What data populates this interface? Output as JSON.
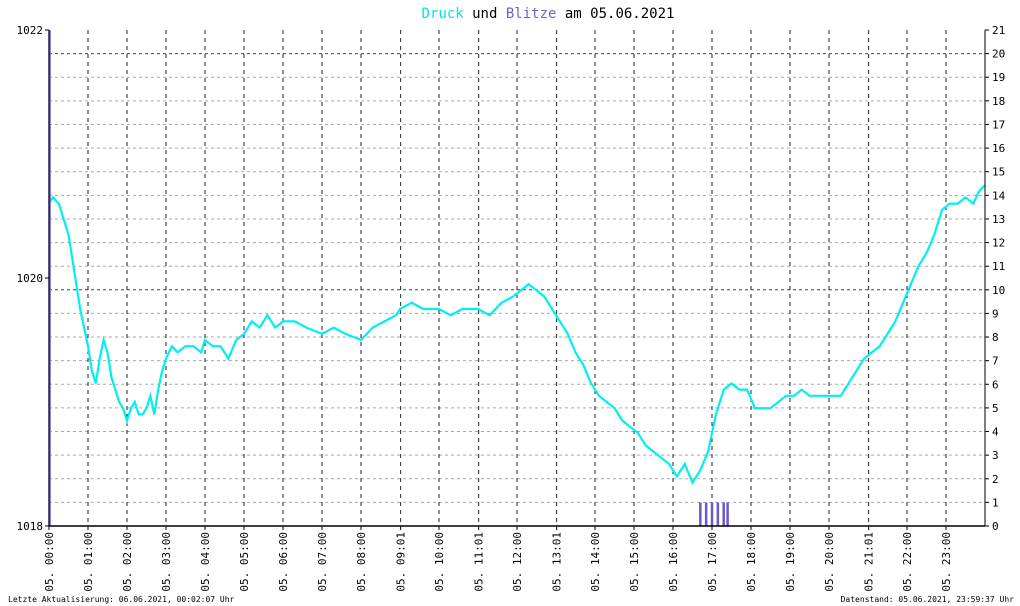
{
  "chart_data": {
    "type": "line",
    "title_parts": [
      "Druck",
      " und ",
      "Blitze",
      " am 05.06.2021"
    ],
    "title_colors": [
      "#00e5e5",
      "#000000",
      "#7060d0",
      "#000000"
    ],
    "left_axis": {
      "ylim": [
        1018,
        1022
      ],
      "ticks": [
        "1018",
        "1020",
        "1022"
      ]
    },
    "right_axis": {
      "ylim": [
        0,
        21
      ],
      "ticks": [
        "0",
        "1",
        "2",
        "3",
        "4",
        "5",
        "6",
        "7",
        "8",
        "9",
        "10",
        "11",
        "12",
        "13",
        "14",
        "15",
        "16",
        "17",
        "18",
        "19",
        "20",
        "21"
      ]
    },
    "x_ticks": [
      "05. 00:00",
      "05. 01:00",
      "05. 02:00",
      "05. 03:00",
      "05. 04:00",
      "05. 05:00",
      "05. 06:00",
      "05. 07:00",
      "05. 08:00",
      "05. 09:01",
      "05. 10:00",
      "05. 11:01",
      "05. 12:00",
      "05. 13:01",
      "05. 14:00",
      "05. 15:00",
      "05. 16:00",
      "05. 17:00",
      "05. 18:00",
      "05. 19:00",
      "05. 20:00",
      "05. 21:01",
      "05. 22:00",
      "05. 23:00"
    ],
    "x_tick_hours": [
      0,
      1,
      2,
      3,
      4,
      5,
      6,
      7,
      8,
      9.017,
      10,
      11.017,
      12,
      13.017,
      14,
      15,
      16,
      17,
      18,
      19,
      20,
      21.017,
      22,
      23
    ],
    "x_range_hours": [
      0,
      24
    ],
    "grid": true,
    "series": [
      {
        "name": "Druck",
        "axis": "left",
        "color": "#00f0f0",
        "points": [
          [
            0.0,
            1020.6
          ],
          [
            0.1,
            1020.65
          ],
          [
            0.25,
            1020.6
          ],
          [
            0.4,
            1020.45
          ],
          [
            0.5,
            1020.35
          ],
          [
            0.6,
            1020.15
          ],
          [
            0.7,
            1019.95
          ],
          [
            0.8,
            1019.75
          ],
          [
            0.9,
            1019.6
          ],
          [
            1.0,
            1019.45
          ],
          [
            1.1,
            1019.25
          ],
          [
            1.2,
            1019.15
          ],
          [
            1.3,
            1019.35
          ],
          [
            1.4,
            1019.5
          ],
          [
            1.5,
            1019.4
          ],
          [
            1.6,
            1019.2
          ],
          [
            1.7,
            1019.1
          ],
          [
            1.8,
            1019.0
          ],
          [
            1.9,
            1018.95
          ],
          [
            2.0,
            1018.85
          ],
          [
            2.1,
            1018.95
          ],
          [
            2.2,
            1019.0
          ],
          [
            2.3,
            1018.9
          ],
          [
            2.4,
            1018.9
          ],
          [
            2.5,
            1018.95
          ],
          [
            2.6,
            1019.05
          ],
          [
            2.7,
            1018.9
          ],
          [
            2.8,
            1019.1
          ],
          [
            2.9,
            1019.25
          ],
          [
            3.0,
            1019.35
          ],
          [
            3.15,
            1019.45
          ],
          [
            3.3,
            1019.4
          ],
          [
            3.5,
            1019.45
          ],
          [
            3.7,
            1019.45
          ],
          [
            3.9,
            1019.4
          ],
          [
            4.0,
            1019.5
          ],
          [
            4.2,
            1019.45
          ],
          [
            4.4,
            1019.45
          ],
          [
            4.6,
            1019.35
          ],
          [
            4.8,
            1019.5
          ],
          [
            5.0,
            1019.55
          ],
          [
            5.2,
            1019.65
          ],
          [
            5.4,
            1019.6
          ],
          [
            5.6,
            1019.7
          ],
          [
            5.8,
            1019.6
          ],
          [
            6.0,
            1019.65
          ],
          [
            6.3,
            1019.65
          ],
          [
            6.6,
            1019.6
          ],
          [
            7.0,
            1019.55
          ],
          [
            7.3,
            1019.6
          ],
          [
            7.6,
            1019.55
          ],
          [
            8.0,
            1019.5
          ],
          [
            8.3,
            1019.6
          ],
          [
            8.6,
            1019.65
          ],
          [
            8.9,
            1019.7
          ],
          [
            9.0,
            1019.75
          ],
          [
            9.3,
            1019.8
          ],
          [
            9.6,
            1019.75
          ],
          [
            10.0,
            1019.75
          ],
          [
            10.3,
            1019.7
          ],
          [
            10.6,
            1019.75
          ],
          [
            11.0,
            1019.75
          ],
          [
            11.3,
            1019.7
          ],
          [
            11.6,
            1019.8
          ],
          [
            11.9,
            1019.85
          ],
          [
            12.1,
            1019.9
          ],
          [
            12.3,
            1019.95
          ],
          [
            12.5,
            1019.9
          ],
          [
            12.7,
            1019.85
          ],
          [
            12.9,
            1019.75
          ],
          [
            13.1,
            1019.65
          ],
          [
            13.3,
            1019.55
          ],
          [
            13.5,
            1019.4
          ],
          [
            13.7,
            1019.3
          ],
          [
            13.9,
            1019.15
          ],
          [
            14.1,
            1019.05
          ],
          [
            14.3,
            1019.0
          ],
          [
            14.5,
            1018.95
          ],
          [
            14.7,
            1018.85
          ],
          [
            14.9,
            1018.8
          ],
          [
            15.1,
            1018.75
          ],
          [
            15.3,
            1018.65
          ],
          [
            15.5,
            1018.6
          ],
          [
            15.7,
            1018.55
          ],
          [
            15.9,
            1018.5
          ],
          [
            16.1,
            1018.4
          ],
          [
            16.3,
            1018.5
          ],
          [
            16.5,
            1018.35
          ],
          [
            16.7,
            1018.45
          ],
          [
            16.9,
            1018.6
          ],
          [
            17.1,
            1018.9
          ],
          [
            17.3,
            1019.1
          ],
          [
            17.5,
            1019.15
          ],
          [
            17.7,
            1019.1
          ],
          [
            17.9,
            1019.1
          ],
          [
            18.1,
            1018.95
          ],
          [
            18.3,
            1018.95
          ],
          [
            18.5,
            1018.95
          ],
          [
            18.7,
            1019.0
          ],
          [
            18.9,
            1019.05
          ],
          [
            19.1,
            1019.05
          ],
          [
            19.3,
            1019.1
          ],
          [
            19.5,
            1019.05
          ],
          [
            19.7,
            1019.05
          ],
          [
            19.9,
            1019.05
          ],
          [
            20.1,
            1019.05
          ],
          [
            20.3,
            1019.05
          ],
          [
            20.5,
            1019.15
          ],
          [
            20.7,
            1019.25
          ],
          [
            20.9,
            1019.35
          ],
          [
            21.1,
            1019.4
          ],
          [
            21.3,
            1019.45
          ],
          [
            21.5,
            1019.55
          ],
          [
            21.7,
            1019.65
          ],
          [
            21.9,
            1019.8
          ],
          [
            22.1,
            1019.95
          ],
          [
            22.3,
            1020.1
          ],
          [
            22.5,
            1020.2
          ],
          [
            22.7,
            1020.35
          ],
          [
            22.9,
            1020.55
          ],
          [
            23.1,
            1020.6
          ],
          [
            23.3,
            1020.6
          ],
          [
            23.5,
            1020.65
          ],
          [
            23.7,
            1020.6
          ],
          [
            23.85,
            1020.7
          ],
          [
            24.0,
            1020.75
          ]
        ]
      },
      {
        "name": "Blitze",
        "axis": "right",
        "color": "#6a5acd",
        "bars": [
          [
            0.0,
            21
          ],
          [
            16.7,
            1
          ],
          [
            16.85,
            1
          ],
          [
            17.0,
            1
          ],
          [
            17.15,
            1
          ],
          [
            17.3,
            1
          ],
          [
            17.4,
            1
          ]
        ]
      }
    ]
  },
  "footer": {
    "left": "Letzte Aktualisierung: 06.06.2021, 00:02:07 Uhr",
    "right": "Datenstand: 05.06.2021, 23:59:37 Uhr"
  }
}
